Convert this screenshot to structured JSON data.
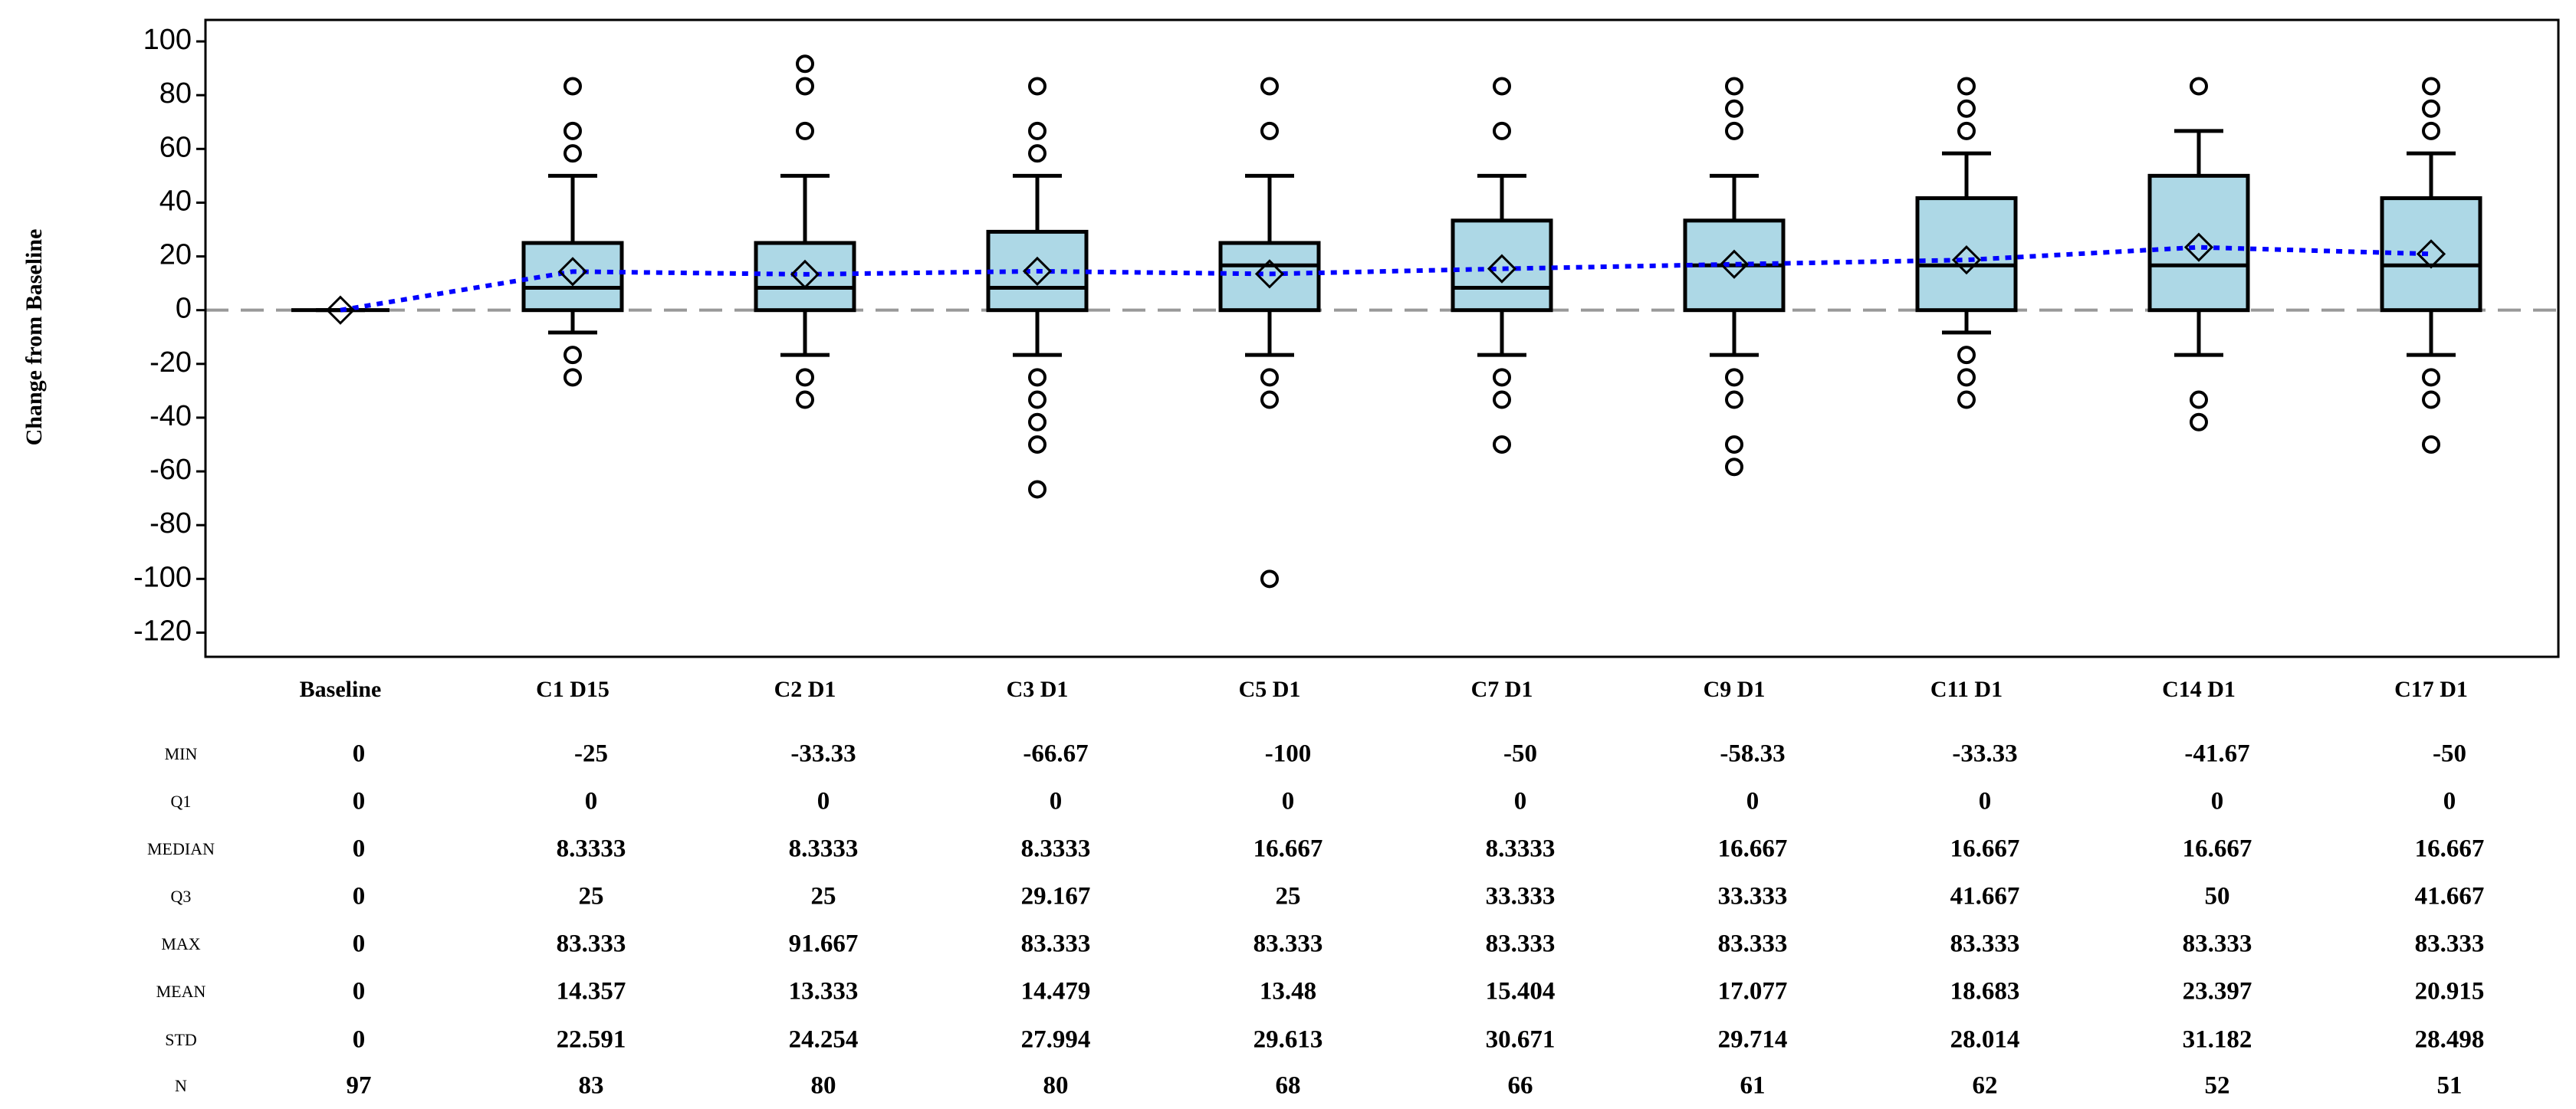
{
  "chart_data": {
    "type": "box",
    "y_label": "Change from Baseline",
    "categories": [
      "Baseline",
      "C1 D15",
      "C2 D1",
      "C3 D1",
      "C5 D1",
      "C7 D1",
      "C9 D1",
      "C11 D1",
      "C14 D1",
      "C17 D1"
    ],
    "ylim": [
      -129,
      108
    ],
    "yticks": [
      -120,
      -100,
      -80,
      -60,
      -40,
      -20,
      0,
      20,
      40,
      60,
      80,
      100
    ],
    "refline": 0,
    "box_color": "#add8e6",
    "mean_line_color": "#0000ff",
    "whisker_low": [
      0,
      -8.33,
      -16.67,
      -16.67,
      -16.67,
      -16.67,
      -16.67,
      -8.33,
      -16.67,
      -16.67
    ],
    "whisker_high": [
      0,
      50,
      50,
      50,
      50,
      50,
      50,
      58.33,
      66.67,
      58.33
    ],
    "outliers": [
      [],
      [
        58.33,
        66.67,
        83.33,
        -16.67,
        -25
      ],
      [
        66.67,
        83.33,
        91.67,
        -25,
        -33.33
      ],
      [
        58.33,
        66.67,
        83.33,
        -25,
        -33.33,
        -41.67,
        -50,
        -66.67
      ],
      [
        66.67,
        83.33,
        -25,
        -33.33,
        -100
      ],
      [
        66.67,
        83.33,
        -25,
        -33.33,
        -50
      ],
      [
        66.67,
        75,
        83.33,
        -25,
        -33.33,
        -50,
        -58.33
      ],
      [
        66.67,
        75,
        83.33,
        -16.67,
        -25,
        -33.33
      ],
      [
        83.33,
        -33.33,
        -41.67
      ],
      [
        66.67,
        75,
        83.33,
        -25,
        -33.33,
        -50
      ]
    ],
    "stats": [
      {
        "label": "MIN",
        "values": [
          0,
          -25,
          -33.33,
          -66.67,
          -100,
          -50,
          -58.33,
          -33.33,
          -41.67,
          -50
        ]
      },
      {
        "label": "Q1",
        "values": [
          0,
          0,
          0,
          0,
          0,
          0,
          0,
          0,
          0,
          0
        ]
      },
      {
        "label": "MEDIAN",
        "values": [
          0,
          8.3333,
          8.3333,
          8.3333,
          16.667,
          8.3333,
          16.667,
          16.667,
          16.667,
          16.667
        ]
      },
      {
        "label": "Q3",
        "values": [
          0,
          25,
          25,
          29.167,
          25,
          33.333,
          33.333,
          41.667,
          50,
          41.667
        ]
      },
      {
        "label": "MAX",
        "values": [
          0,
          83.333,
          91.667,
          83.333,
          83.333,
          83.333,
          83.333,
          83.333,
          83.333,
          83.333
        ]
      },
      {
        "label": "MEAN",
        "values": [
          0,
          14.357,
          13.333,
          14.479,
          13.48,
          15.404,
          17.077,
          18.683,
          23.397,
          20.915
        ]
      },
      {
        "label": "STD",
        "values": [
          0,
          22.591,
          24.254,
          27.994,
          29.613,
          30.671,
          29.714,
          28.014,
          31.182,
          28.498
        ]
      },
      {
        "label": "N",
        "values": [
          97,
          83,
          80,
          80,
          68,
          66,
          61,
          62,
          52,
          51
        ]
      }
    ]
  }
}
